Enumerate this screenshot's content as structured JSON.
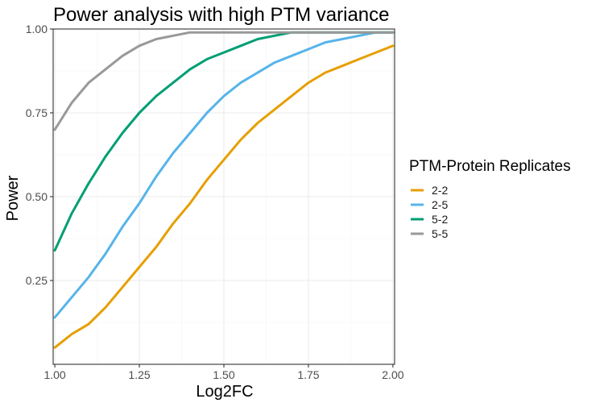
{
  "chart_data": {
    "type": "line",
    "title": "Power analysis with high PTM variance",
    "xlabel": "Log2FC",
    "ylabel": "Power",
    "xlim": [
      0.995,
      2.005
    ],
    "ylim": [
      0.0,
      1.0
    ],
    "x_ticks": [
      1.0,
      1.25,
      1.5,
      1.75,
      2.0
    ],
    "x_tick_labels": [
      "1.00",
      "1.25",
      "1.50",
      "1.75",
      "2.00"
    ],
    "y_ticks": [
      0.25,
      0.5,
      0.75,
      1.0
    ],
    "y_tick_labels": [
      "0.25",
      "0.50",
      "0.75",
      "1.00"
    ],
    "grid": true,
    "legend": {
      "title": "PTM-Protein Replicates",
      "placement": "right"
    },
    "x": [
      1.0,
      1.05,
      1.1,
      1.15,
      1.2,
      1.25,
      1.3,
      1.35,
      1.4,
      1.45,
      1.5,
      1.55,
      1.6,
      1.65,
      1.7,
      1.75,
      1.8,
      1.85,
      1.9,
      1.95,
      2.0
    ],
    "series": [
      {
        "name": "2-2",
        "color": "#E69F00",
        "values": [
          0.05,
          0.09,
          0.12,
          0.17,
          0.23,
          0.29,
          0.35,
          0.42,
          0.48,
          0.55,
          0.61,
          0.67,
          0.72,
          0.76,
          0.8,
          0.84,
          0.87,
          0.89,
          0.91,
          0.93,
          0.95
        ]
      },
      {
        "name": "2-5",
        "color": "#56B4E9",
        "values": [
          0.14,
          0.2,
          0.26,
          0.33,
          0.41,
          0.48,
          0.56,
          0.63,
          0.69,
          0.75,
          0.8,
          0.84,
          0.87,
          0.9,
          0.92,
          0.94,
          0.96,
          0.97,
          0.98,
          0.99,
          0.99
        ]
      },
      {
        "name": "5-2",
        "color": "#009E73",
        "values": [
          0.34,
          0.45,
          0.54,
          0.62,
          0.69,
          0.75,
          0.8,
          0.84,
          0.88,
          0.91,
          0.93,
          0.95,
          0.97,
          0.98,
          0.99,
          0.99,
          0.99,
          0.99,
          0.99,
          0.99,
          0.99
        ]
      },
      {
        "name": "5-5",
        "color": "#999999",
        "values": [
          0.7,
          0.78,
          0.84,
          0.88,
          0.92,
          0.95,
          0.97,
          0.98,
          0.99,
          0.99,
          0.99,
          0.99,
          0.99,
          0.99,
          0.99,
          0.99,
          0.99,
          0.99,
          0.99,
          0.99,
          0.99
        ]
      }
    ]
  }
}
